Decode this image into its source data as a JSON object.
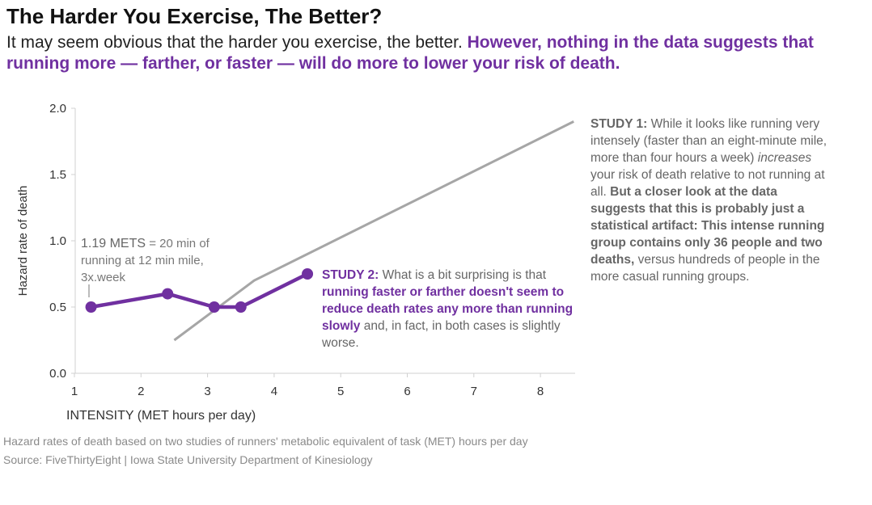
{
  "title": "The Harder You Exercise, The Better?",
  "subtitle": {
    "plain": "It may seem obvious that the harder you exercise, the better. ",
    "highlight": "However, nothing in the data suggests that running more — farther, or faster — will do more to lower your risk of death."
  },
  "colors": {
    "study1": "#a6a6a6",
    "study2": "#7030a0",
    "axis": "#d0d0d0",
    "text": "#666666"
  },
  "chart_data": {
    "type": "line",
    "title": "The Harder You Exercise, The Better?",
    "xlabel": "INTENSITY (MET hours per day)",
    "ylabel": "Hazard rate of death",
    "xlim": [
      1,
      8.5
    ],
    "ylim": [
      0,
      2.0
    ],
    "xticks": [
      1,
      2,
      3,
      4,
      5,
      6,
      7,
      8
    ],
    "yticks": [
      "0.0",
      "0.5",
      "1.0",
      "1.5",
      "2.0"
    ],
    "grid": false,
    "series": [
      {
        "name": "Study 1",
        "x": [
          2.5,
          3.7,
          8.5
        ],
        "y": [
          0.25,
          0.7,
          1.9
        ],
        "markers": false
      },
      {
        "name": "Study 2",
        "x": [
          1.25,
          2.4,
          3.1,
          3.5,
          4.5
        ],
        "y": [
          0.5,
          0.6,
          0.5,
          0.5,
          0.75
        ],
        "markers": true
      }
    ]
  },
  "annotations": {
    "mets": {
      "lead": "1.19 METS",
      "rest": " = 20 min of running at 12 min mile, 3x.week"
    },
    "study2": {
      "label": "STUDY 2:",
      "t1": " What is a bit surprising is that ",
      "bold": "running faster or farther doesn't seem to reduce death rates any more than running slowly",
      "t2": " and, in fact, in both cases is slightly worse."
    },
    "study1": {
      "label": "STUDY 1:",
      "t1": " While it looks like running very intensely (faster than an eight-minute mile, more than four hours a week) ",
      "em": "increases",
      "t2": " your risk of death relative to not running at all. ",
      "bold": "But a closer look at the data suggests that this is probably just a statistical artifact: This intense running group contains only 36 people and two deaths,",
      "t3": " versus hundreds of people in the more casual running groups."
    }
  },
  "footer": {
    "description": "Hazard rates of death based on two studies of runners' metabolic equivalent of task (MET) hours per day",
    "source": "Source:  FiveThirtyEight  |  Iowa State University Department of Kinesiology"
  }
}
